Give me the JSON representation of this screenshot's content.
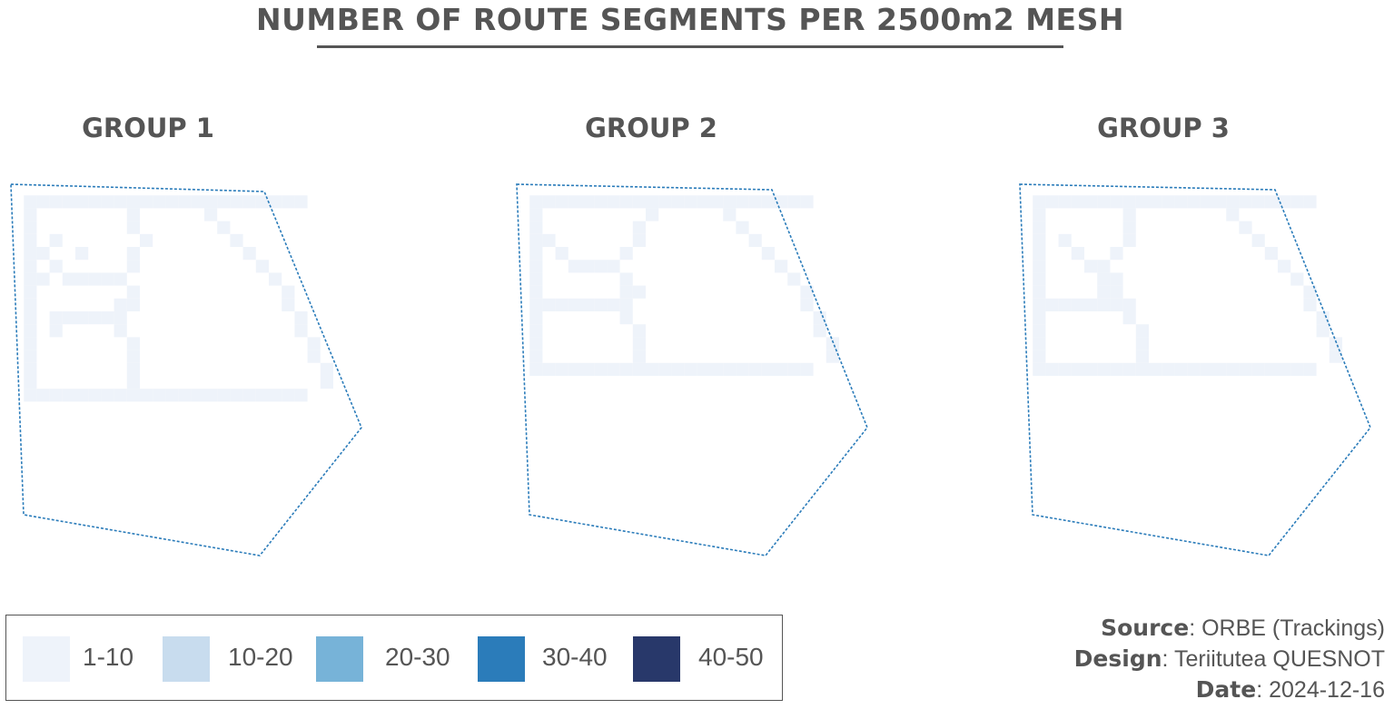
{
  "title": "NUMBER OF ROUTE SEGMENTS PER 2500m2 MESH",
  "groups": [
    {
      "title": "GROUP 1",
      "grids": {
        "c1": [
          "000000000000000000000000",
          "0111111111111111111111100",
          "0100000001000001000000000",
          "0100000001000000100000000",
          "0101000000100000010000000",
          "0110010001000000001000000",
          "0101000001000000000100000",
          "0110111110000000000010000",
          "0100000001000000000001000",
          "0100000011000000000001000",
          "0101111110000000000000100",
          "0101000010000000000000100",
          "0100000001000000000000010",
          "0100000001000000000000010",
          "0100000001000000000000001",
          "0100000001000000000000001",
          "0111111111111111111111100",
          "0000000000000000000000000"
        ],
        "c2": [
          "000000000000000000000000",
          "000000000000000000000000",
          "000000000000000000000000",
          "000000000000000000000000",
          "000000000000000000000000",
          "000000000000000000000000",
          "000000000000000000000000",
          "000000000000000000000000",
          "000000000000000000000000",
          "000000000000000000000000",
          "000000000000000000000000",
          "000000000000000000000000",
          "000000000000000000000000",
          "000000000000000000000000",
          "000000000000000000000000",
          "000000000000000000000000",
          "000000000000000000000000",
          "000000000000000000000000"
        ],
        "c3": [
          "000000000000000000000000",
          "000000000000000000000000",
          "000000000000000000000000",
          "000000000000000000000000",
          "000000000000000000000000",
          "000000000000000000000000",
          "000000000000000000000000",
          "000000000000000000000000",
          "000000000000000000000000",
          "000000000000000000000000",
          "000000000000000000000000",
          "000000000000000000000000",
          "000000000000000000000000",
          "000000000000000000000000",
          "000000000000000000000000",
          "000000000000000000000000",
          "000000000000000000000000",
          "000000000000000000000000"
        ],
        "c4": [
          "000000000000000000000000",
          "000000000000000000000000",
          "000000000000000000000000",
          "000000000000000000000000",
          "000000000000000000000000",
          "000000000000000000000000",
          "000000000000000000000000",
          "000000000000000000000000",
          "000000000000000000000000",
          "000000000000000000000000",
          "000000000000000000000000",
          "000000000000000000000000",
          "000000000000000000000000",
          "000000000000000000000000",
          "000000000000000000000000",
          "000000000000000000000000",
          "000000000000000000000000",
          "000000000000000000000000"
        ],
        "c5": [
          "000000000000000000000000",
          "000000000000000000000000",
          "000000000000000000000000",
          "000000000000000000000000",
          "000000000000000000000000",
          "000000000000000000000000",
          "000000000000000000000000",
          "000000000000000000000000",
          "000000000000000000000000",
          "000000000000000000000000",
          "000000000000000000000000",
          "000000000000000000000000",
          "000000000000000000000000",
          "000000000000000000000000",
          "000000000000000000000000",
          "000000000000000000000000",
          "000000000000000000000000",
          "000000000000000000000000"
        ]
      }
    },
    {
      "title": "GROUP 2",
      "grids": {
        "c1": [
          "000000000000000000000000",
          "0111111111111111111111100",
          "0100000000100000100000000",
          "0100000001000000010000000",
          "0110000001000000001000000",
          "0101000010000000000100000",
          "0100111100000000000010000",
          "0100000010000000000001000",
          "0100000011000000000000100",
          "0111111110000000000000100",
          "0100000010000000000000010",
          "0100000001000000000000010",
          "0100000001000000000000001",
          "0100000001000000000000001",
          "0111111111111111111111100",
          "000000000000000000000000",
          "000000000000000000000000",
          "000000000000000000000000"
        ],
        "c2": [
          "000000000000000000000000",
          "000000000000000000000000",
          "000000000000000000000000",
          "000000000000000000000000",
          "000000000000000000000000",
          "000000000000000000000000",
          "000000000000000000000000",
          "000000000000000000000000",
          "000000000000000000000000",
          "000000000000000000000000",
          "000000000000000000000000",
          "000000000000000000000000",
          "000000000000000000000000",
          "000000000000000000000000",
          "000000000000000000000000",
          "000000000000000000000000",
          "000000000000000000000000",
          "000000000000000000000000"
        ],
        "c3": [
          "000000000000000000000000",
          "000000000000000000000000",
          "000000000000000000000000",
          "000000000000000000000000",
          "000000000000000000000000",
          "000000000000000000000000",
          "000000000000000000000000",
          "000000000000000000000000",
          "000000000000000000000000",
          "000000000000000000000000",
          "000000000000000000000000",
          "000000000000000000000000",
          "000000000000000000000000",
          "000000000000000000000000",
          "000000000000000000000000",
          "000000000000000000000000",
          "000000000000000000000000",
          "000000000000000000000000"
        ],
        "c4": [
          "000000000000000000000000",
          "000000000000000000000000",
          "000000000000000000000000",
          "000000000000000000000000",
          "000000000000000000000000",
          "000000000000000000000000",
          "000000000000000000000000",
          "000000000000000000000000",
          "000000000000000000000000",
          "000000000000000000000000",
          "000000000000000000000000",
          "000000000000000000000000",
          "000000000000000000000000",
          "000000000000000000000000",
          "000000000000000000000000",
          "000000000000000000000000",
          "000000000000000000000000",
          "000000000000000000000000"
        ],
        "c5": [
          "000000000000000000000000",
          "000000000000000000000000",
          "000000000000000000000000",
          "000000000000000000000000",
          "000000000000000000000000",
          "000000000000000000000000",
          "000000000000000000000000",
          "000000000000000000000000",
          "000000000000000000000000",
          "000000000000000000000000",
          "000000000000000000000000",
          "000000000000000000000000",
          "000000000000000000000000",
          "000000000000000000000000",
          "000000000000000000000000",
          "000000000000000000000000",
          "000000000000000000000000",
          "000000000000000000000000"
        ]
      }
    },
    {
      "title": "GROUP 3",
      "grids": {
        "c1": [
          "000000000000000000000000",
          "0111111111111111111111100",
          "0100000010000000100000000",
          "0100000010000000010000000",
          "0101000010000000001000000",
          "0100100100000000000100000",
          "0100011000000000000010000",
          "0100001100000000000001000",
          "0100001100000000000000100",
          "0111111110000000000000100",
          "0100000010000000000000010",
          "0100000001000000000000010",
          "0100000001000000000000001",
          "0100000001000000000000001",
          "0111111111111111111111100",
          "000000000000000000000000",
          "000000000000000000000000",
          "000000000000000000000000"
        ],
        "c2": [
          "000000000000000000000000",
          "000000000000000000000000",
          "000000000000000000000000",
          "000000000000000000000000",
          "000000000000000000000000",
          "000000000000000000000000",
          "000000000000000000000000",
          "000000000000000000000000",
          "000000000000000000000000",
          "000000000000000000000000",
          "000000000000000000000000",
          "000000000000000000000000",
          "000000000000000000000000",
          "000000000000000000000000",
          "000000000000000000000000",
          "000000000000000000000000",
          "000000000000000000000000",
          "000000000000000000000000"
        ],
        "c3": [
          "000000000000000000000000",
          "000000000000000000000000",
          "000000000000000000000000",
          "000000000000000000000000",
          "000000000000000000000000",
          "000000000000000000000000",
          "000000000000000000000000",
          "000000000000000000000000",
          "000000000000000000000000",
          "000000000000000000000000",
          "000000000000000000000000",
          "000000000000000000000000",
          "000000000000000000000000",
          "000000000000000000000000",
          "000000000000000000000000",
          "000000000000000000000000",
          "000000000000000000000000",
          "000000000000000000000000"
        ],
        "c4": [
          "000000000000000000000000",
          "000000000000000000000000",
          "000000000000000000000000",
          "000000000000000000000000",
          "000000000000000000000000",
          "000000000000000000000000",
          "000000000000000000000000",
          "000000000000000000000000",
          "000000000000000000000000",
          "000000000000000000000000",
          "000000000000000000000000",
          "000000000000000000000000",
          "000000000000000000000000",
          "000000000000000000000000",
          "000000000000000000000000",
          "000000000000000000000000",
          "000000000000000000000000",
          "000000000000000000000000"
        ],
        "c5": [
          "000000000000000000000000",
          "000000000000000000000000",
          "000000000000000000000000",
          "000000000000000000000000",
          "000000000000000000000000",
          "000000000000000000000000",
          "000000000000000000000000",
          "000000000000000000000000",
          "000000000000000000000000",
          "000000000000000000000000",
          "000000000000000000000000",
          "000000000000000000000000",
          "000000000000000000000000",
          "000000000000000000000000",
          "000000000000000000000000",
          "000000000000000000000000",
          "000000000000000000000000",
          "000000000000000000000000"
        ]
      }
    }
  ],
  "legend": [
    {
      "label": "1-10",
      "color": "#eef3fa"
    },
    {
      "label": "10-20",
      "color": "#c8dcee"
    },
    {
      "label": "20-30",
      "color": "#77b3d8"
    },
    {
      "label": "30-40",
      "color": "#2b7cba"
    },
    {
      "label": "40-50",
      "color": "#28386a"
    }
  ],
  "outline_color": "#2b7cba",
  "credits": [
    {
      "key": "Source",
      "value": "ORBE (Trackings)"
    },
    {
      "key": "Design",
      "value": "Teriitutea QUESNOT"
    },
    {
      "key": "Date",
      "value": "2024-12-16"
    }
  ]
}
